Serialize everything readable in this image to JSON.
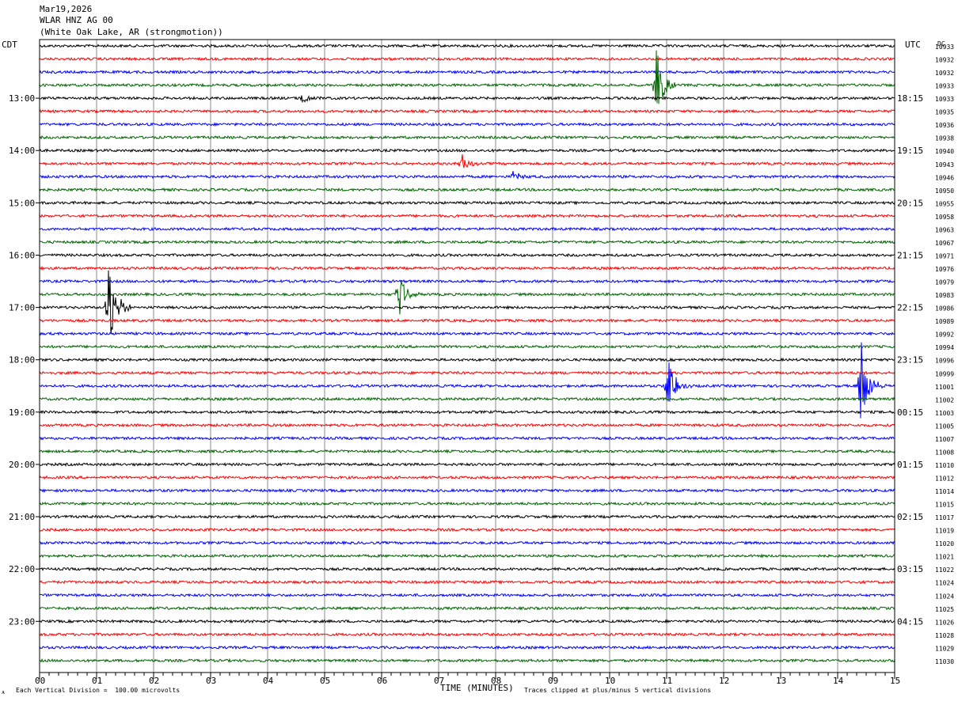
{
  "header": {
    "date": "Mar19,2026",
    "station": "WLAR HNZ AG 00",
    "location": "(White Oak Lake, AR (strongmotion))"
  },
  "left_tz": "CDT",
  "right_tz": "UTC",
  "dc_label": "DC",
  "footer": {
    "marker": "ᴀ",
    "scale": "Each Vertical Division =  100.00 microvolts",
    "xlabel": "TIME (MINUTES)",
    "clip_note": "Traces clipped at plus/minus 5 vertical divisions"
  },
  "chart_data": {
    "type": "line",
    "title": "",
    "xlabel": "TIME (MINUTES)",
    "xlim": [
      0,
      15
    ],
    "x_ticks": [
      "00",
      "01",
      "02",
      "03",
      "04",
      "05",
      "06",
      "07",
      "08",
      "09",
      "10",
      "11",
      "12",
      "13",
      "14",
      "15"
    ],
    "trace_colors": [
      "#000000",
      "#ff0000",
      "#0000ff",
      "#006400"
    ],
    "left_hour_labels": [
      "13:00",
      "14:00",
      "15:00",
      "16:00",
      "17:00",
      "18:00",
      "19:00",
      "20:00",
      "21:00",
      "22:00",
      "23:00"
    ],
    "right_hour_labels": [
      "18:15",
      "19:15",
      "20:15",
      "21:15",
      "22:15",
      "23:15",
      "00:15",
      "01:15",
      "02:15",
      "03:15",
      "04:15"
    ],
    "dc_offsets": [
      "10933",
      "10932",
      "10932",
      "10933",
      "10933",
      "10935",
      "10936",
      "10938",
      "10940",
      "10943",
      "10946",
      "10950",
      "10955",
      "10958",
      "10963",
      "10967",
      "10971",
      "10976",
      "10979",
      "10983",
      "10986",
      "10989",
      "10992",
      "10994",
      "10996",
      "10999",
      "11001",
      "11002",
      "11003",
      "11005",
      "11007",
      "11008",
      "11010",
      "11012",
      "11014",
      "11015",
      "11017",
      "11019",
      "11020",
      "11021",
      "11022",
      "11024",
      "11024",
      "11025",
      "11026",
      "11028",
      "11029",
      "11030"
    ],
    "events": [
      {
        "trace": 3,
        "minute": 10.8,
        "amplitude": 60
      },
      {
        "trace": 4,
        "minute": 4.6,
        "amplitude": 10
      },
      {
        "trace": 9,
        "minute": 7.4,
        "amplitude": 15
      },
      {
        "trace": 10,
        "minute": 8.3,
        "amplitude": 8
      },
      {
        "trace": 19,
        "minute": 6.3,
        "amplitude": 30
      },
      {
        "trace": 20,
        "minute": 1.2,
        "amplitude": 80
      },
      {
        "trace": 26,
        "minute": 11.0,
        "amplitude": 45
      },
      {
        "trace": 26,
        "minute": 14.4,
        "amplitude": 70
      }
    ],
    "clip_divisions": 5
  }
}
